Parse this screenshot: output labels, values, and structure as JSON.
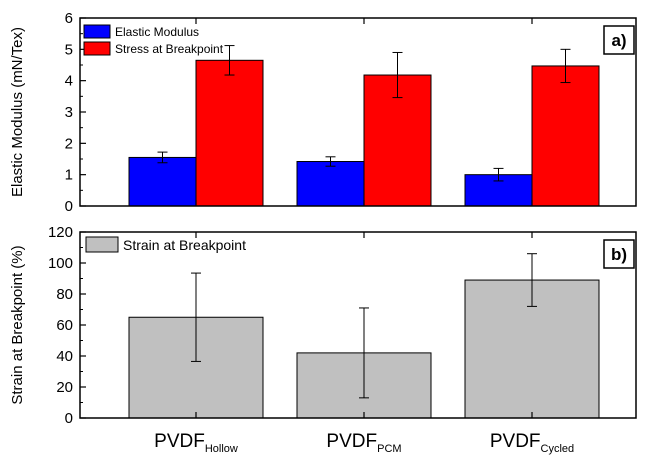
{
  "chart_data": [
    {
      "type": "bar",
      "panel_label": "a)",
      "ylabel": "Elastic Modulus (mN/Tex)",
      "ylim": [
        0,
        6
      ],
      "yticks": [
        0,
        1,
        2,
        3,
        4,
        5,
        6
      ],
      "categories": [
        "PVDF_Hollow",
        "PVDF_PCM",
        "PVDF_Cycled"
      ],
      "series": [
        {
          "name": "Elastic Modulus",
          "color": "#0000ff",
          "values": [
            1.55,
            1.42,
            1.0
          ],
          "errors": [
            0.17,
            0.15,
            0.2
          ]
        },
        {
          "name": "Stress at Breakpoint",
          "color": "#ff0000",
          "values": [
            4.65,
            4.18,
            4.47
          ],
          "errors": [
            0.47,
            0.72,
            0.53
          ]
        }
      ],
      "legend_position": "top-left",
      "grid": false
    },
    {
      "type": "bar",
      "panel_label": "b)",
      "ylabel": "Strain at Breakpoint (%)",
      "ylim": [
        0,
        120
      ],
      "yticks": [
        0,
        20,
        40,
        60,
        80,
        100,
        120
      ],
      "categories": [
        "PVDF_Hollow",
        "PVDF_PCM",
        "PVDF_Cycled"
      ],
      "series": [
        {
          "name": "Strain at Breakpoint",
          "color": "#c0c0c0",
          "values": [
            65,
            42,
            89
          ],
          "errors": [
            28.5,
            29,
            17
          ]
        }
      ],
      "legend_position": "top-left",
      "grid": false
    }
  ],
  "xaxis": {
    "categories": [
      {
        "main": "PVDF",
        "sub": "Hollow"
      },
      {
        "main": "PVDF",
        "sub": "PCM"
      },
      {
        "main": "PVDF",
        "sub": "Cycled"
      }
    ]
  }
}
